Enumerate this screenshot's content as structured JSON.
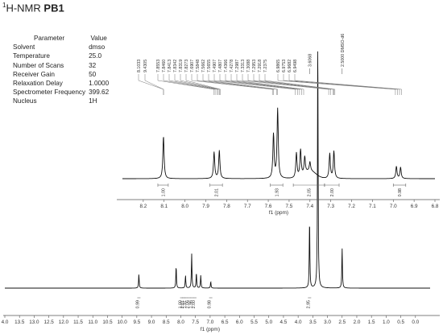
{
  "title": {
    "superscript": "1",
    "prefix": "H-NMR",
    "compound": "PB1"
  },
  "parameters": {
    "header": [
      "Parameter",
      "Value"
    ],
    "rows": [
      [
        "Solvent",
        "dmso"
      ],
      [
        "Temperature",
        "25.0"
      ],
      [
        "Number of Scans",
        "32"
      ],
      [
        "Receiver Gain",
        "50"
      ],
      [
        "Relaxation Delay",
        "1.0000"
      ],
      [
        "Spectrometer Frequency",
        "399.62"
      ],
      [
        "Nucleus",
        "1H"
      ]
    ]
  },
  "chart_data": [
    {
      "type": "line",
      "panel": "full-spectrum",
      "xlabel": "f1 (ppm)",
      "ylabel": "",
      "xlim": [
        4.0,
        0.0
      ],
      "xlim_full": [
        14.0,
        -0.5
      ],
      "x_ticks": [
        "14.0",
        "13.5",
        "13.0",
        "12.5",
        "12.0",
        "11.5",
        "11.0",
        "10.5",
        "10.0",
        "9.5",
        "9.0",
        "8.5",
        "8.0",
        "7.5",
        "7.0",
        "6.5",
        "6.0",
        "5.5",
        "5.0",
        "4.5",
        "4.0",
        "3.5",
        "3.0",
        "2.5",
        "2.0",
        "1.5",
        "1.0",
        "0.5",
        "0.0"
      ],
      "x_ticks_shown": [
        "4.0",
        "13.5",
        "13.0",
        "12.5",
        "12.0",
        "11.5",
        "11.0",
        "10.5",
        "10.0",
        "9.5",
        "9.0",
        "8.5",
        "8.0",
        "7.5",
        "7.0",
        "6.5",
        "6.0",
        "5.5",
        "5.0",
        "4.5",
        "4.0",
        "3.5",
        "3.0",
        "2.5",
        "2.0",
        "1.5",
        "1.0",
        "0.5",
        "0.0"
      ],
      "peaks": [
        {
          "ppm": 9.43,
          "height": 0.055
        },
        {
          "ppm": 8.16,
          "height": 0.085
        },
        {
          "ppm": 7.84,
          "height": 0.05
        },
        {
          "ppm": 7.63,
          "height": 0.135
        },
        {
          "ppm": 7.47,
          "height": 0.06
        },
        {
          "ppm": 7.32,
          "height": 0.05
        },
        {
          "ppm": 6.98,
          "height": 0.025
        },
        {
          "ppm": 3.61,
          "height": 0.27
        },
        {
          "ppm": 3.33,
          "height": 1.0
        },
        {
          "ppm": 2.5,
          "height": 0.155
        }
      ],
      "top_peak_labels": [
        "3.6068",
        "2.5000 DMSO-d6"
      ],
      "integrals": [
        {
          "ppm": 9.43,
          "label": "0.99"
        },
        {
          "ppm": 8.16,
          "label": "1.00"
        },
        {
          "ppm": 8.0,
          "label": "2.01"
        },
        {
          "ppm": 7.9,
          "label": "1.91"
        },
        {
          "ppm": 7.7,
          "label": "2.06"
        },
        {
          "ppm": 7.55,
          "label": "1.96"
        },
        {
          "ppm": 7.35,
          "label": "2.00"
        },
        {
          "ppm": 6.98,
          "label": "0.98"
        },
        {
          "ppm": 3.61,
          "label": "2.95"
        }
      ]
    },
    {
      "type": "line",
      "panel": "aromatic-inset",
      "xlabel": "f1 (ppm)",
      "ylabel": "",
      "xlim": [
        8.3,
        6.8
      ],
      "x_ticks": [
        "8.2",
        "8.1",
        "8.0",
        "7.9",
        "7.8",
        "7.7",
        "7.6",
        "7.5",
        "7.4",
        "7.3",
        "7.2",
        "7.1",
        "7.0",
        "6.9",
        "6.8"
      ],
      "peaks": [
        {
          "ppm": 8.103,
          "height": 0.56
        },
        {
          "ppm": 7.86,
          "height": 0.35
        },
        {
          "ppm": 7.835,
          "height": 0.37
        },
        {
          "ppm": 7.575,
          "height": 0.58
        },
        {
          "ppm": 7.555,
          "height": 0.92
        },
        {
          "ppm": 7.465,
          "height": 0.33
        },
        {
          "ppm": 7.445,
          "height": 0.35
        },
        {
          "ppm": 7.425,
          "height": 0.22
        },
        {
          "ppm": 7.4,
          "height": 0.12
        },
        {
          "ppm": 7.305,
          "height": 0.33
        },
        {
          "ppm": 7.285,
          "height": 0.36
        },
        {
          "ppm": 6.985,
          "height": 0.16
        },
        {
          "ppm": 6.965,
          "height": 0.15
        }
      ],
      "peak_labels": [
        "8.1033",
        "9.4305",
        "7.8553",
        "7.8460",
        "7.8413",
        "7.8342",
        "7.8319",
        "7.8273",
        "7.6907",
        "7.5848",
        "7.5662",
        "7.5655",
        "7.4907",
        "7.4807",
        "7.4366",
        "7.4278",
        "7.2987",
        "7.3313",
        "7.3088",
        "7.2953",
        "7.2918",
        "7.2375",
        "6.9865",
        "6.9753",
        "6.9682",
        "6.9498"
      ],
      "integrals": [
        {
          "from": 8.13,
          "to": 8.08,
          "label": "1.00"
        },
        {
          "from": 7.88,
          "to": 7.82,
          "label": "2.01"
        },
        {
          "from": 7.59,
          "to": 7.53,
          "label": "1.93"
        },
        {
          "from": 7.48,
          "to": 7.33,
          "label": "2.05"
        },
        {
          "from": 7.33,
          "to": 7.26,
          "label": "2.00"
        },
        {
          "from": 7.0,
          "to": 6.94,
          "label": "0.98"
        }
      ]
    }
  ]
}
